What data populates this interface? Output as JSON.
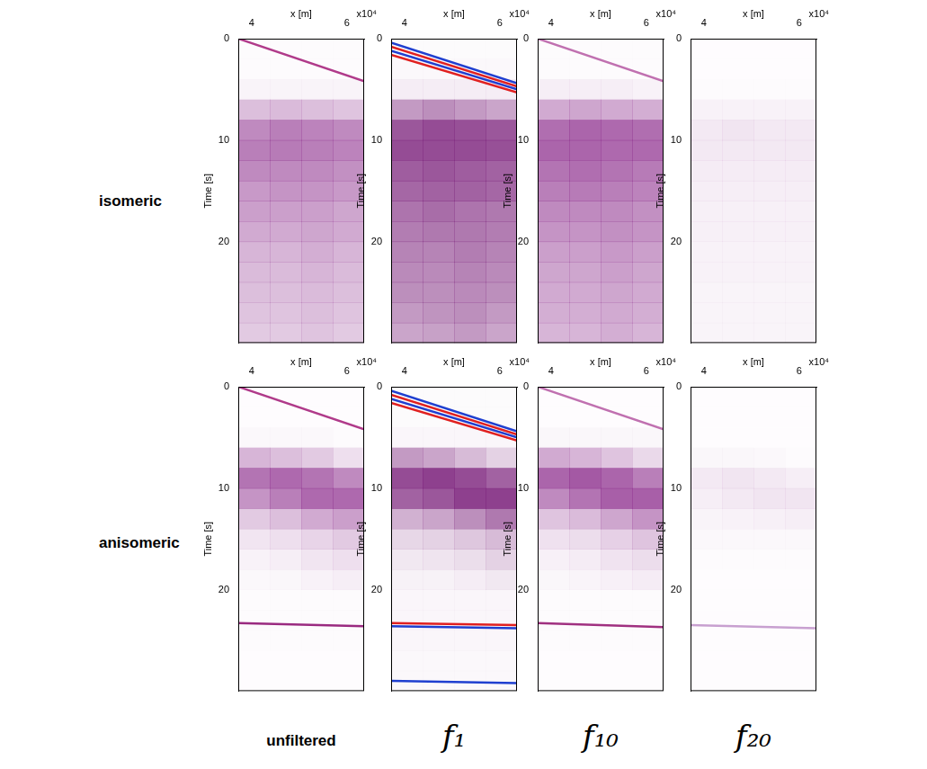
{
  "figure": {
    "row_labels": [
      "isomeric",
      "anisomeric"
    ],
    "column_labels": [
      "unfiltered",
      "f₁",
      "f₁₀",
      "f₂₀"
    ]
  },
  "chart_data": [
    {
      "type": "heatmap",
      "x_label": "x [m]",
      "x_multiplier_label": "x10⁴",
      "y_label": "Time [s]",
      "xlim": [
        3.72,
        6.36
      ],
      "xticks": [
        4,
        6
      ],
      "ylim": [
        0,
        30
      ],
      "yticks": [
        0,
        10,
        20
      ],
      "grid": false,
      "color": "#8b2a8b",
      "cell_x_edges": [
        3.72,
        4.38,
        5.04,
        5.7,
        6.36
      ],
      "cell_y_edges": [
        0,
        2,
        4,
        6,
        8,
        10,
        12,
        14,
        16,
        18,
        20,
        22,
        24,
        26,
        28,
        30
      ],
      "cells": [
        [
          0.02,
          0.02,
          0.02,
          0.02
        ],
        [
          0.02,
          0.02,
          0.02,
          0.02
        ],
        [
          0.05,
          0.05,
          0.05,
          0.05
        ],
        [
          0.3,
          0.32,
          0.3,
          0.28
        ],
        [
          0.55,
          0.6,
          0.58,
          0.55
        ],
        [
          0.6,
          0.62,
          0.6,
          0.58
        ],
        [
          0.55,
          0.55,
          0.55,
          0.52
        ],
        [
          0.48,
          0.5,
          0.5,
          0.48
        ],
        [
          0.45,
          0.45,
          0.45,
          0.42
        ],
        [
          0.4,
          0.4,
          0.42,
          0.4
        ],
        [
          0.35,
          0.35,
          0.38,
          0.35
        ],
        [
          0.32,
          0.32,
          0.35,
          0.32
        ],
        [
          0.3,
          0.3,
          0.32,
          0.3
        ],
        [
          0.28,
          0.28,
          0.3,
          0.28
        ],
        [
          0.25,
          0.25,
          0.28,
          0.25
        ]
      ],
      "lines": [
        {
          "x": [
            3.72,
            6.36
          ],
          "values": [
            0,
            4.2
          ],
          "color": "#b03a8a"
        }
      ]
    },
    {
      "type": "heatmap",
      "x_label": "x [m]",
      "x_multiplier_label": "x10⁴",
      "y_label": "Time [s]",
      "xlim": [
        3.72,
        6.36
      ],
      "xticks": [
        4,
        6
      ],
      "ylim": [
        0,
        30
      ],
      "yticks": [
        0,
        10,
        20
      ],
      "grid": false,
      "color": "#7a1f7a",
      "cell_x_edges": [
        3.72,
        4.38,
        5.04,
        5.7,
        6.36
      ],
      "cell_y_edges": [
        0,
        2,
        4,
        6,
        8,
        10,
        12,
        14,
        16,
        18,
        20,
        22,
        24,
        26,
        28,
        30
      ],
      "cells": [
        [
          0.02,
          0.02,
          0.02,
          0.02
        ],
        [
          0.03,
          0.03,
          0.03,
          0.03
        ],
        [
          0.08,
          0.08,
          0.08,
          0.08
        ],
        [
          0.45,
          0.5,
          0.45,
          0.4
        ],
        [
          0.75,
          0.8,
          0.78,
          0.75
        ],
        [
          0.8,
          0.8,
          0.8,
          0.78
        ],
        [
          0.72,
          0.75,
          0.72,
          0.7
        ],
        [
          0.68,
          0.7,
          0.7,
          0.68
        ],
        [
          0.62,
          0.65,
          0.62,
          0.6
        ],
        [
          0.58,
          0.6,
          0.6,
          0.58
        ],
        [
          0.55,
          0.55,
          0.58,
          0.55
        ],
        [
          0.52,
          0.52,
          0.55,
          0.52
        ],
        [
          0.5,
          0.5,
          0.52,
          0.5
        ],
        [
          0.45,
          0.48,
          0.5,
          0.45
        ],
        [
          0.4,
          0.42,
          0.45,
          0.4
        ]
      ],
      "lines": [
        {
          "x": [
            3.72,
            6.36
          ],
          "values": [
            0.4,
            4.4
          ],
          "color": "#1f3fd0"
        },
        {
          "x": [
            3.72,
            6.36
          ],
          "values": [
            0.8,
            4.7
          ],
          "color": "#e02020"
        },
        {
          "x": [
            3.72,
            6.36
          ],
          "values": [
            1.2,
            5.0
          ],
          "color": "#1f3fd0"
        },
        {
          "x": [
            3.72,
            6.36
          ],
          "values": [
            1.6,
            5.3
          ],
          "color": "#e02020"
        }
      ]
    },
    {
      "type": "heatmap",
      "x_label": "x [m]",
      "x_multiplier_label": "x10⁴",
      "y_label": "Time [s]",
      "xlim": [
        3.72,
        6.36
      ],
      "xticks": [
        4,
        6
      ],
      "ylim": [
        0,
        30
      ],
      "yticks": [
        0,
        10,
        20
      ],
      "grid": false,
      "color": "#8b2a8b",
      "cell_x_edges": [
        3.72,
        4.38,
        5.04,
        5.7,
        6.36
      ],
      "cell_y_edges": [
        0,
        2,
        4,
        6,
        8,
        10,
        12,
        14,
        16,
        18,
        20,
        22,
        24,
        26,
        28,
        30
      ],
      "cells": [
        [
          0.02,
          0.02,
          0.02,
          0.02
        ],
        [
          0.02,
          0.02,
          0.02,
          0.02
        ],
        [
          0.08,
          0.08,
          0.08,
          0.06
        ],
        [
          0.4,
          0.42,
          0.4,
          0.38
        ],
        [
          0.68,
          0.72,
          0.7,
          0.68
        ],
        [
          0.72,
          0.72,
          0.7,
          0.7
        ],
        [
          0.65,
          0.68,
          0.65,
          0.62
        ],
        [
          0.6,
          0.62,
          0.6,
          0.58
        ],
        [
          0.55,
          0.55,
          0.55,
          0.52
        ],
        [
          0.5,
          0.5,
          0.52,
          0.5
        ],
        [
          0.45,
          0.45,
          0.48,
          0.45
        ],
        [
          0.42,
          0.42,
          0.45,
          0.42
        ],
        [
          0.4,
          0.4,
          0.42,
          0.4
        ],
        [
          0.38,
          0.38,
          0.4,
          0.38
        ],
        [
          0.35,
          0.35,
          0.38,
          0.35
        ]
      ],
      "lines": [
        {
          "x": [
            3.72,
            6.36
          ],
          "values": [
            0,
            4.2
          ],
          "color": "#c070b0"
        }
      ]
    },
    {
      "type": "heatmap",
      "x_label": "x [m]",
      "x_multiplier_label": "x10⁴",
      "y_label": "Time [s]",
      "xlim": [
        3.72,
        6.36
      ],
      "xticks": [
        4,
        6
      ],
      "ylim": [
        0,
        30
      ],
      "yticks": [
        0,
        10,
        20
      ],
      "grid": false,
      "color": "#8b2a8b",
      "cell_x_edges": [
        3.72,
        4.38,
        5.04,
        5.7,
        6.36
      ],
      "cell_y_edges": [
        0,
        2,
        4,
        6,
        8,
        10,
        12,
        14,
        16,
        18,
        20,
        22,
        24,
        26,
        28,
        30
      ],
      "cells": [
        [
          0.01,
          0.01,
          0.01,
          0.01
        ],
        [
          0.01,
          0.01,
          0.01,
          0.01
        ],
        [
          0.02,
          0.02,
          0.02,
          0.02
        ],
        [
          0.06,
          0.06,
          0.06,
          0.06
        ],
        [
          0.1,
          0.12,
          0.1,
          0.1
        ],
        [
          0.1,
          0.1,
          0.1,
          0.1
        ],
        [
          0.09,
          0.09,
          0.09,
          0.09
        ],
        [
          0.08,
          0.08,
          0.08,
          0.08
        ],
        [
          0.07,
          0.07,
          0.07,
          0.07
        ],
        [
          0.07,
          0.07,
          0.07,
          0.07
        ],
        [
          0.06,
          0.06,
          0.06,
          0.06
        ],
        [
          0.06,
          0.06,
          0.06,
          0.06
        ],
        [
          0.05,
          0.05,
          0.05,
          0.05
        ],
        [
          0.05,
          0.05,
          0.05,
          0.05
        ],
        [
          0.05,
          0.05,
          0.05,
          0.05
        ]
      ]
    },
    {
      "type": "heatmap",
      "x_label": "x [m]",
      "x_multiplier_label": "x10⁴",
      "y_label": "Time [s]",
      "xlim": [
        3.72,
        6.36
      ],
      "xticks": [
        4,
        6
      ],
      "ylim": [
        0,
        30
      ],
      "yticks": [
        0,
        10,
        20
      ],
      "grid": false,
      "color": "#8b2a8b",
      "cell_x_edges": [
        3.72,
        4.38,
        5.04,
        5.7,
        6.36
      ],
      "cell_y_edges": [
        0,
        2,
        4,
        6,
        8,
        10,
        12,
        14,
        16,
        18,
        20,
        22,
        24,
        26,
        28,
        30
      ],
      "cells": [
        [
          0.01,
          0.01,
          0.01,
          0.01
        ],
        [
          0.01,
          0.01,
          0.01,
          0.01
        ],
        [
          0.03,
          0.03,
          0.03,
          0.02
        ],
        [
          0.35,
          0.3,
          0.25,
          0.15
        ],
        [
          0.65,
          0.7,
          0.65,
          0.55
        ],
        [
          0.5,
          0.6,
          0.7,
          0.7
        ],
        [
          0.25,
          0.3,
          0.4,
          0.45
        ],
        [
          0.12,
          0.15,
          0.2,
          0.25
        ],
        [
          0.06,
          0.08,
          0.12,
          0.15
        ],
        [
          0.03,
          0.04,
          0.06,
          0.08
        ],
        [
          0.02,
          0.02,
          0.02,
          0.02
        ],
        [
          0.02,
          0.02,
          0.02,
          0.02
        ],
        [
          0.02,
          0.02,
          0.02,
          0.02
        ],
        [
          0.01,
          0.01,
          0.01,
          0.01
        ],
        [
          0.01,
          0.01,
          0.01,
          0.01
        ]
      ],
      "lines": [
        {
          "x": [
            3.72,
            6.36
          ],
          "values": [
            0,
            4.2
          ],
          "color": "#b03a8a"
        },
        {
          "x": [
            3.72,
            6.36
          ],
          "values": [
            23.3,
            23.6
          ],
          "color": "#9a2a80"
        }
      ]
    },
    {
      "type": "heatmap",
      "x_label": "x [m]",
      "x_multiplier_label": "x10⁴",
      "y_label": "Time [s]",
      "xlim": [
        3.72,
        6.36
      ],
      "xticks": [
        4,
        6
      ],
      "ylim": [
        0,
        30
      ],
      "yticks": [
        0,
        10,
        20
      ],
      "grid": false,
      "color": "#7a1f7a",
      "cell_x_edges": [
        3.72,
        4.38,
        5.04,
        5.7,
        6.36
      ],
      "cell_y_edges": [
        0,
        2,
        4,
        6,
        8,
        10,
        12,
        14,
        16,
        18,
        20,
        22,
        24,
        26,
        28,
        30
      ],
      "cells": [
        [
          0.02,
          0.02,
          0.02,
          0.02
        ],
        [
          0.02,
          0.02,
          0.02,
          0.02
        ],
        [
          0.04,
          0.04,
          0.04,
          0.04
        ],
        [
          0.45,
          0.4,
          0.3,
          0.2
        ],
        [
          0.8,
          0.85,
          0.8,
          0.7
        ],
        [
          0.7,
          0.75,
          0.85,
          0.85
        ],
        [
          0.35,
          0.4,
          0.5,
          0.6
        ],
        [
          0.18,
          0.2,
          0.25,
          0.3
        ],
        [
          0.1,
          0.12,
          0.15,
          0.2
        ],
        [
          0.06,
          0.06,
          0.08,
          0.1
        ],
        [
          0.04,
          0.04,
          0.04,
          0.04
        ],
        [
          0.04,
          0.04,
          0.04,
          0.04
        ],
        [
          0.04,
          0.04,
          0.04,
          0.04
        ],
        [
          0.03,
          0.03,
          0.03,
          0.03
        ],
        [
          0.03,
          0.03,
          0.03,
          0.03
        ]
      ],
      "lines": [
        {
          "x": [
            3.72,
            6.36
          ],
          "values": [
            0.4,
            4.4
          ],
          "color": "#1f3fd0"
        },
        {
          "x": [
            3.72,
            6.36
          ],
          "values": [
            0.8,
            4.7
          ],
          "color": "#e02020"
        },
        {
          "x": [
            3.72,
            6.36
          ],
          "values": [
            1.2,
            5.0
          ],
          "color": "#1f3fd0"
        },
        {
          "x": [
            3.72,
            6.36
          ],
          "values": [
            1.6,
            5.3
          ],
          "color": "#e02020"
        },
        {
          "x": [
            3.72,
            6.36
          ],
          "values": [
            23.3,
            23.5
          ],
          "color": "#e02020"
        },
        {
          "x": [
            3.72,
            6.36
          ],
          "values": [
            23.6,
            23.8
          ],
          "color": "#1f3fd0"
        },
        {
          "x": [
            3.72,
            6.36
          ],
          "values": [
            29.0,
            29.2
          ],
          "color": "#1f3fd0"
        }
      ]
    },
    {
      "type": "heatmap",
      "x_label": "x [m]",
      "x_multiplier_label": "x10⁴",
      "y_label": "Time [s]",
      "xlim": [
        3.72,
        6.36
      ],
      "xticks": [
        4,
        6
      ],
      "ylim": [
        0,
        30
      ],
      "yticks": [
        0,
        10,
        20
      ],
      "grid": false,
      "color": "#8b2a8b",
      "cell_x_edges": [
        3.72,
        4.38,
        5.04,
        5.7,
        6.36
      ],
      "cell_y_edges": [
        0,
        2,
        4,
        6,
        8,
        10,
        12,
        14,
        16,
        18,
        20,
        22,
        24,
        26,
        28,
        30
      ],
      "cells": [
        [
          0.01,
          0.01,
          0.01,
          0.01
        ],
        [
          0.01,
          0.01,
          0.01,
          0.01
        ],
        [
          0.04,
          0.04,
          0.04,
          0.04
        ],
        [
          0.4,
          0.35,
          0.28,
          0.18
        ],
        [
          0.72,
          0.78,
          0.72,
          0.6
        ],
        [
          0.55,
          0.65,
          0.75,
          0.75
        ],
        [
          0.28,
          0.32,
          0.42,
          0.5
        ],
        [
          0.14,
          0.16,
          0.22,
          0.28
        ],
        [
          0.07,
          0.09,
          0.13,
          0.16
        ],
        [
          0.04,
          0.05,
          0.07,
          0.09
        ],
        [
          0.02,
          0.02,
          0.02,
          0.02
        ],
        [
          0.02,
          0.02,
          0.02,
          0.02
        ],
        [
          0.02,
          0.02,
          0.02,
          0.02
        ],
        [
          0.01,
          0.01,
          0.01,
          0.01
        ],
        [
          0.01,
          0.01,
          0.01,
          0.01
        ]
      ],
      "lines": [
        {
          "x": [
            3.72,
            6.36
          ],
          "values": [
            0,
            4.2
          ],
          "color": "#c070b0"
        },
        {
          "x": [
            3.72,
            6.36
          ],
          "values": [
            23.3,
            23.7
          ],
          "color": "#a03080"
        }
      ]
    },
    {
      "type": "heatmap",
      "x_label": "x [m]",
      "x_multiplier_label": "x10⁴",
      "y_label": "Time [s]",
      "xlim": [
        3.72,
        6.36
      ],
      "xticks": [
        4,
        6
      ],
      "ylim": [
        0,
        30
      ],
      "yticks": [
        0,
        10,
        20
      ],
      "grid": false,
      "color": "#8b2a8b",
      "cell_x_edges": [
        3.72,
        4.38,
        5.04,
        5.7,
        6.36
      ],
      "cell_y_edges": [
        0,
        2,
        4,
        6,
        8,
        10,
        12,
        14,
        16,
        18,
        20,
        22,
        24,
        26,
        28,
        30
      ],
      "cells": [
        [
          0.01,
          0.01,
          0.01,
          0.01
        ],
        [
          0.01,
          0.01,
          0.01,
          0.01
        ],
        [
          0.01,
          0.01,
          0.01,
          0.01
        ],
        [
          0.04,
          0.04,
          0.03,
          0.02
        ],
        [
          0.1,
          0.12,
          0.1,
          0.08
        ],
        [
          0.08,
          0.1,
          0.12,
          0.12
        ],
        [
          0.05,
          0.06,
          0.07,
          0.08
        ],
        [
          0.03,
          0.03,
          0.03,
          0.03
        ],
        [
          0.02,
          0.02,
          0.02,
          0.02
        ],
        [
          0.01,
          0.01,
          0.01,
          0.01
        ],
        [
          0.01,
          0.01,
          0.01,
          0.01
        ],
        [
          0.01,
          0.01,
          0.01,
          0.01
        ],
        [
          0.01,
          0.01,
          0.01,
          0.01
        ],
        [
          0.01,
          0.01,
          0.01,
          0.01
        ],
        [
          0.01,
          0.01,
          0.01,
          0.01
        ]
      ],
      "lines": [
        {
          "x": [
            3.72,
            6.36
          ],
          "values": [
            23.5,
            23.8
          ],
          "color": "#c8a0d0"
        }
      ]
    }
  ]
}
